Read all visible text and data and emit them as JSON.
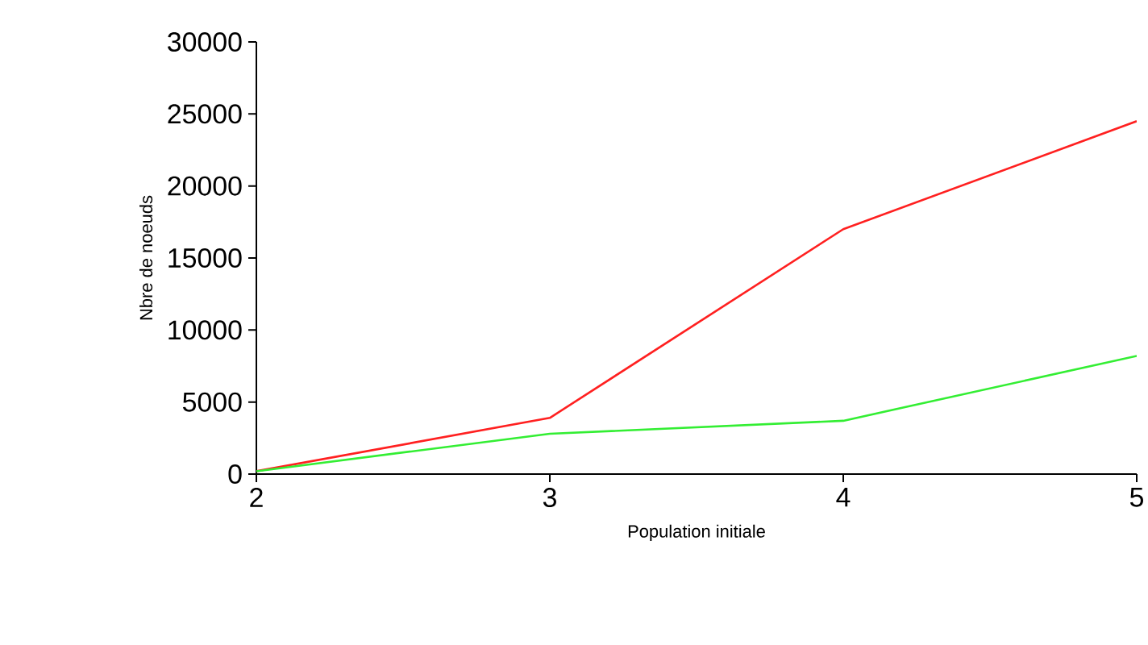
{
  "chart_data": {
    "type": "line",
    "xlabel": "Population initiale",
    "ylabel": "Nbre de noeuds",
    "x": [
      2,
      3,
      4,
      5
    ],
    "series": [
      {
        "color": "#ff2020",
        "values": [
          200,
          3900,
          17000,
          24500
        ]
      },
      {
        "color": "#33ee33",
        "values": [
          200,
          2800,
          3700,
          8200
        ]
      }
    ],
    "xlim": [
      2,
      5
    ],
    "xticks": [
      2,
      3,
      4,
      5
    ],
    "ylim": [
      0,
      30000
    ],
    "yticks": [
      0,
      5000,
      10000,
      15000,
      20000,
      25000,
      30000
    ]
  }
}
